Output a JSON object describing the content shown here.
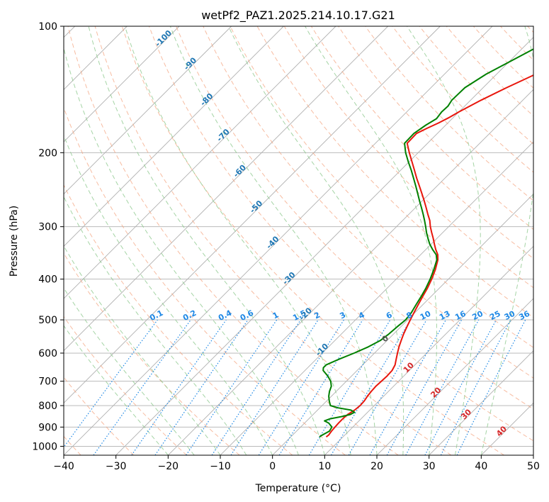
{
  "chart_data": {
    "type": "skew-t",
    "title": "wetPf2_PAZ1.2025.214.10.17.G21",
    "xlabel": "Temperature (°C)",
    "ylabel": "Pressure (hPa)",
    "xlim": [
      -40,
      50
    ],
    "ylim": [
      1050,
      100
    ],
    "y_scale": "log",
    "x_ticks": [
      "−40",
      "−30",
      "−20",
      "−10",
      "0",
      "10",
      "20",
      "30",
      "40",
      "50"
    ],
    "y_ticks": [
      "100",
      "200",
      "300",
      "400",
      "500",
      "600",
      "700",
      "800",
      "900",
      "1000"
    ],
    "grid": true,
    "series": [
      {
        "color": "#e8160c",
        "points": [
          [
            950,
            6.8
          ],
          [
            940,
            6.9
          ],
          [
            920,
            6.7
          ],
          [
            900,
            6.6
          ],
          [
            880,
            6.5
          ],
          [
            860,
            6.5
          ],
          [
            840,
            6.6
          ],
          [
            820,
            7.1
          ],
          [
            800,
            7.3
          ],
          [
            780,
            7.2
          ],
          [
            760,
            6.9
          ],
          [
            740,
            6.7
          ],
          [
            720,
            6.6
          ],
          [
            700,
            6.7
          ],
          [
            680,
            6.8
          ],
          [
            660,
            6.7
          ],
          [
            640,
            6.2
          ],
          [
            620,
            5.3
          ],
          [
            600,
            4.4
          ],
          [
            580,
            3.5
          ],
          [
            560,
            2.7
          ],
          [
            540,
            1.9
          ],
          [
            520,
            1.2
          ],
          [
            500,
            0.5
          ],
          [
            480,
            -0.2
          ],
          [
            460,
            -0.9
          ],
          [
            440,
            -1.6
          ],
          [
            420,
            -2.3
          ],
          [
            400,
            -3.2
          ],
          [
            380,
            -4.3
          ],
          [
            360,
            -5.7
          ],
          [
            350,
            -6.7
          ],
          [
            340,
            -8.1
          ],
          [
            330,
            -9.4
          ],
          [
            320,
            -10.7
          ],
          [
            310,
            -12.1
          ],
          [
            300,
            -13.5
          ],
          [
            290,
            -14.8
          ],
          [
            280,
            -16.4
          ],
          [
            270,
            -18.0
          ],
          [
            260,
            -19.7
          ],
          [
            250,
            -21.5
          ],
          [
            240,
            -23.4
          ],
          [
            230,
            -25.4
          ],
          [
            220,
            -27.4
          ],
          [
            210,
            -29.5
          ],
          [
            200,
            -31.7
          ],
          [
            190,
            -33.9
          ],
          [
            180,
            -34.0
          ],
          [
            175,
            -33.0
          ],
          [
            170,
            -31.8
          ],
          [
            165,
            -30.8
          ],
          [
            160,
            -30.0
          ],
          [
            150,
            -28.0
          ],
          [
            140,
            -25.5
          ],
          [
            130,
            -22.5
          ],
          [
            120,
            -18.7
          ],
          [
            110,
            -15.0
          ],
          [
            100,
            -12.0
          ]
        ]
      },
      {
        "color": "#008000",
        "points": [
          [
            950,
            5.5
          ],
          [
            940,
            5.7
          ],
          [
            920,
            6.3
          ],
          [
            900,
            6.0
          ],
          [
            880,
            4.6
          ],
          [
            870,
            3.4
          ],
          [
            860,
            4.1
          ],
          [
            850,
            5.8
          ],
          [
            840,
            7.1
          ],
          [
            830,
            7.5
          ],
          [
            820,
            6.4
          ],
          [
            810,
            3.5
          ],
          [
            800,
            1.6
          ],
          [
            780,
            0.5
          ],
          [
            760,
            -0.5
          ],
          [
            740,
            -1.3
          ],
          [
            720,
            -1.9
          ],
          [
            700,
            -3.0
          ],
          [
            680,
            -4.6
          ],
          [
            660,
            -6.5
          ],
          [
            650,
            -7.0
          ],
          [
            640,
            -7.0
          ],
          [
            620,
            -5.6
          ],
          [
            600,
            -3.9
          ],
          [
            580,
            -2.4
          ],
          [
            560,
            -1.3
          ],
          [
            540,
            -0.9
          ],
          [
            520,
            -0.7
          ],
          [
            500,
            -0.4
          ],
          [
            480,
            -0.7
          ],
          [
            460,
            -1.3
          ],
          [
            440,
            -1.9
          ],
          [
            420,
            -2.6
          ],
          [
            400,
            -3.5
          ],
          [
            380,
            -4.6
          ],
          [
            360,
            -5.9
          ],
          [
            350,
            -7.0
          ],
          [
            340,
            -8.7
          ],
          [
            330,
            -10.3
          ],
          [
            320,
            -11.7
          ],
          [
            310,
            -13.1
          ],
          [
            300,
            -14.4
          ],
          [
            290,
            -15.8
          ],
          [
            280,
            -17.3
          ],
          [
            270,
            -18.9
          ],
          [
            260,
            -20.6
          ],
          [
            250,
            -22.3
          ],
          [
            240,
            -24.1
          ],
          [
            230,
            -26.0
          ],
          [
            220,
            -28.0
          ],
          [
            210,
            -30.2
          ],
          [
            200,
            -32.4
          ],
          [
            190,
            -34.4
          ],
          [
            180,
            -34.5
          ],
          [
            172,
            -33.8
          ],
          [
            166,
            -33.0
          ],
          [
            160,
            -33.3
          ],
          [
            155,
            -33.2
          ],
          [
            150,
            -33.6
          ],
          [
            140,
            -33.5
          ],
          [
            130,
            -32.0
          ],
          [
            120,
            -29.5
          ],
          [
            110,
            -26.8
          ],
          [
            100,
            -24.2
          ]
        ]
      }
    ],
    "dry_adiabats": [
      -100,
      -90,
      -80,
      -70,
      -60,
      -50,
      -40,
      -30,
      -20,
      -10,
      0,
      10,
      20,
      30,
      40
    ],
    "mixing_ratio_labels": [
      "0.1",
      "0.2",
      "0.4",
      "0.6",
      "1",
      "1.5",
      "2",
      "3",
      "4",
      "6",
      "8",
      "10",
      "13",
      "16",
      "20",
      "25",
      "30",
      "36"
    ],
    "mixing_ratio_values": [
      0.1,
      0.2,
      0.4,
      0.6,
      1,
      1.5,
      2,
      3,
      4,
      6,
      8,
      10,
      13,
      16,
      20,
      25,
      30,
      36
    ],
    "colors": {
      "isotherm": "#b0b0b0",
      "isobar": "#b0b0b0",
      "dry_adiabat": "#f4a582",
      "moist_adiabat": "#8fc98f",
      "mixing_ratio": "#1e88e5",
      "dry_label": "#1f77b4",
      "wet_label": "#d62728"
    }
  }
}
